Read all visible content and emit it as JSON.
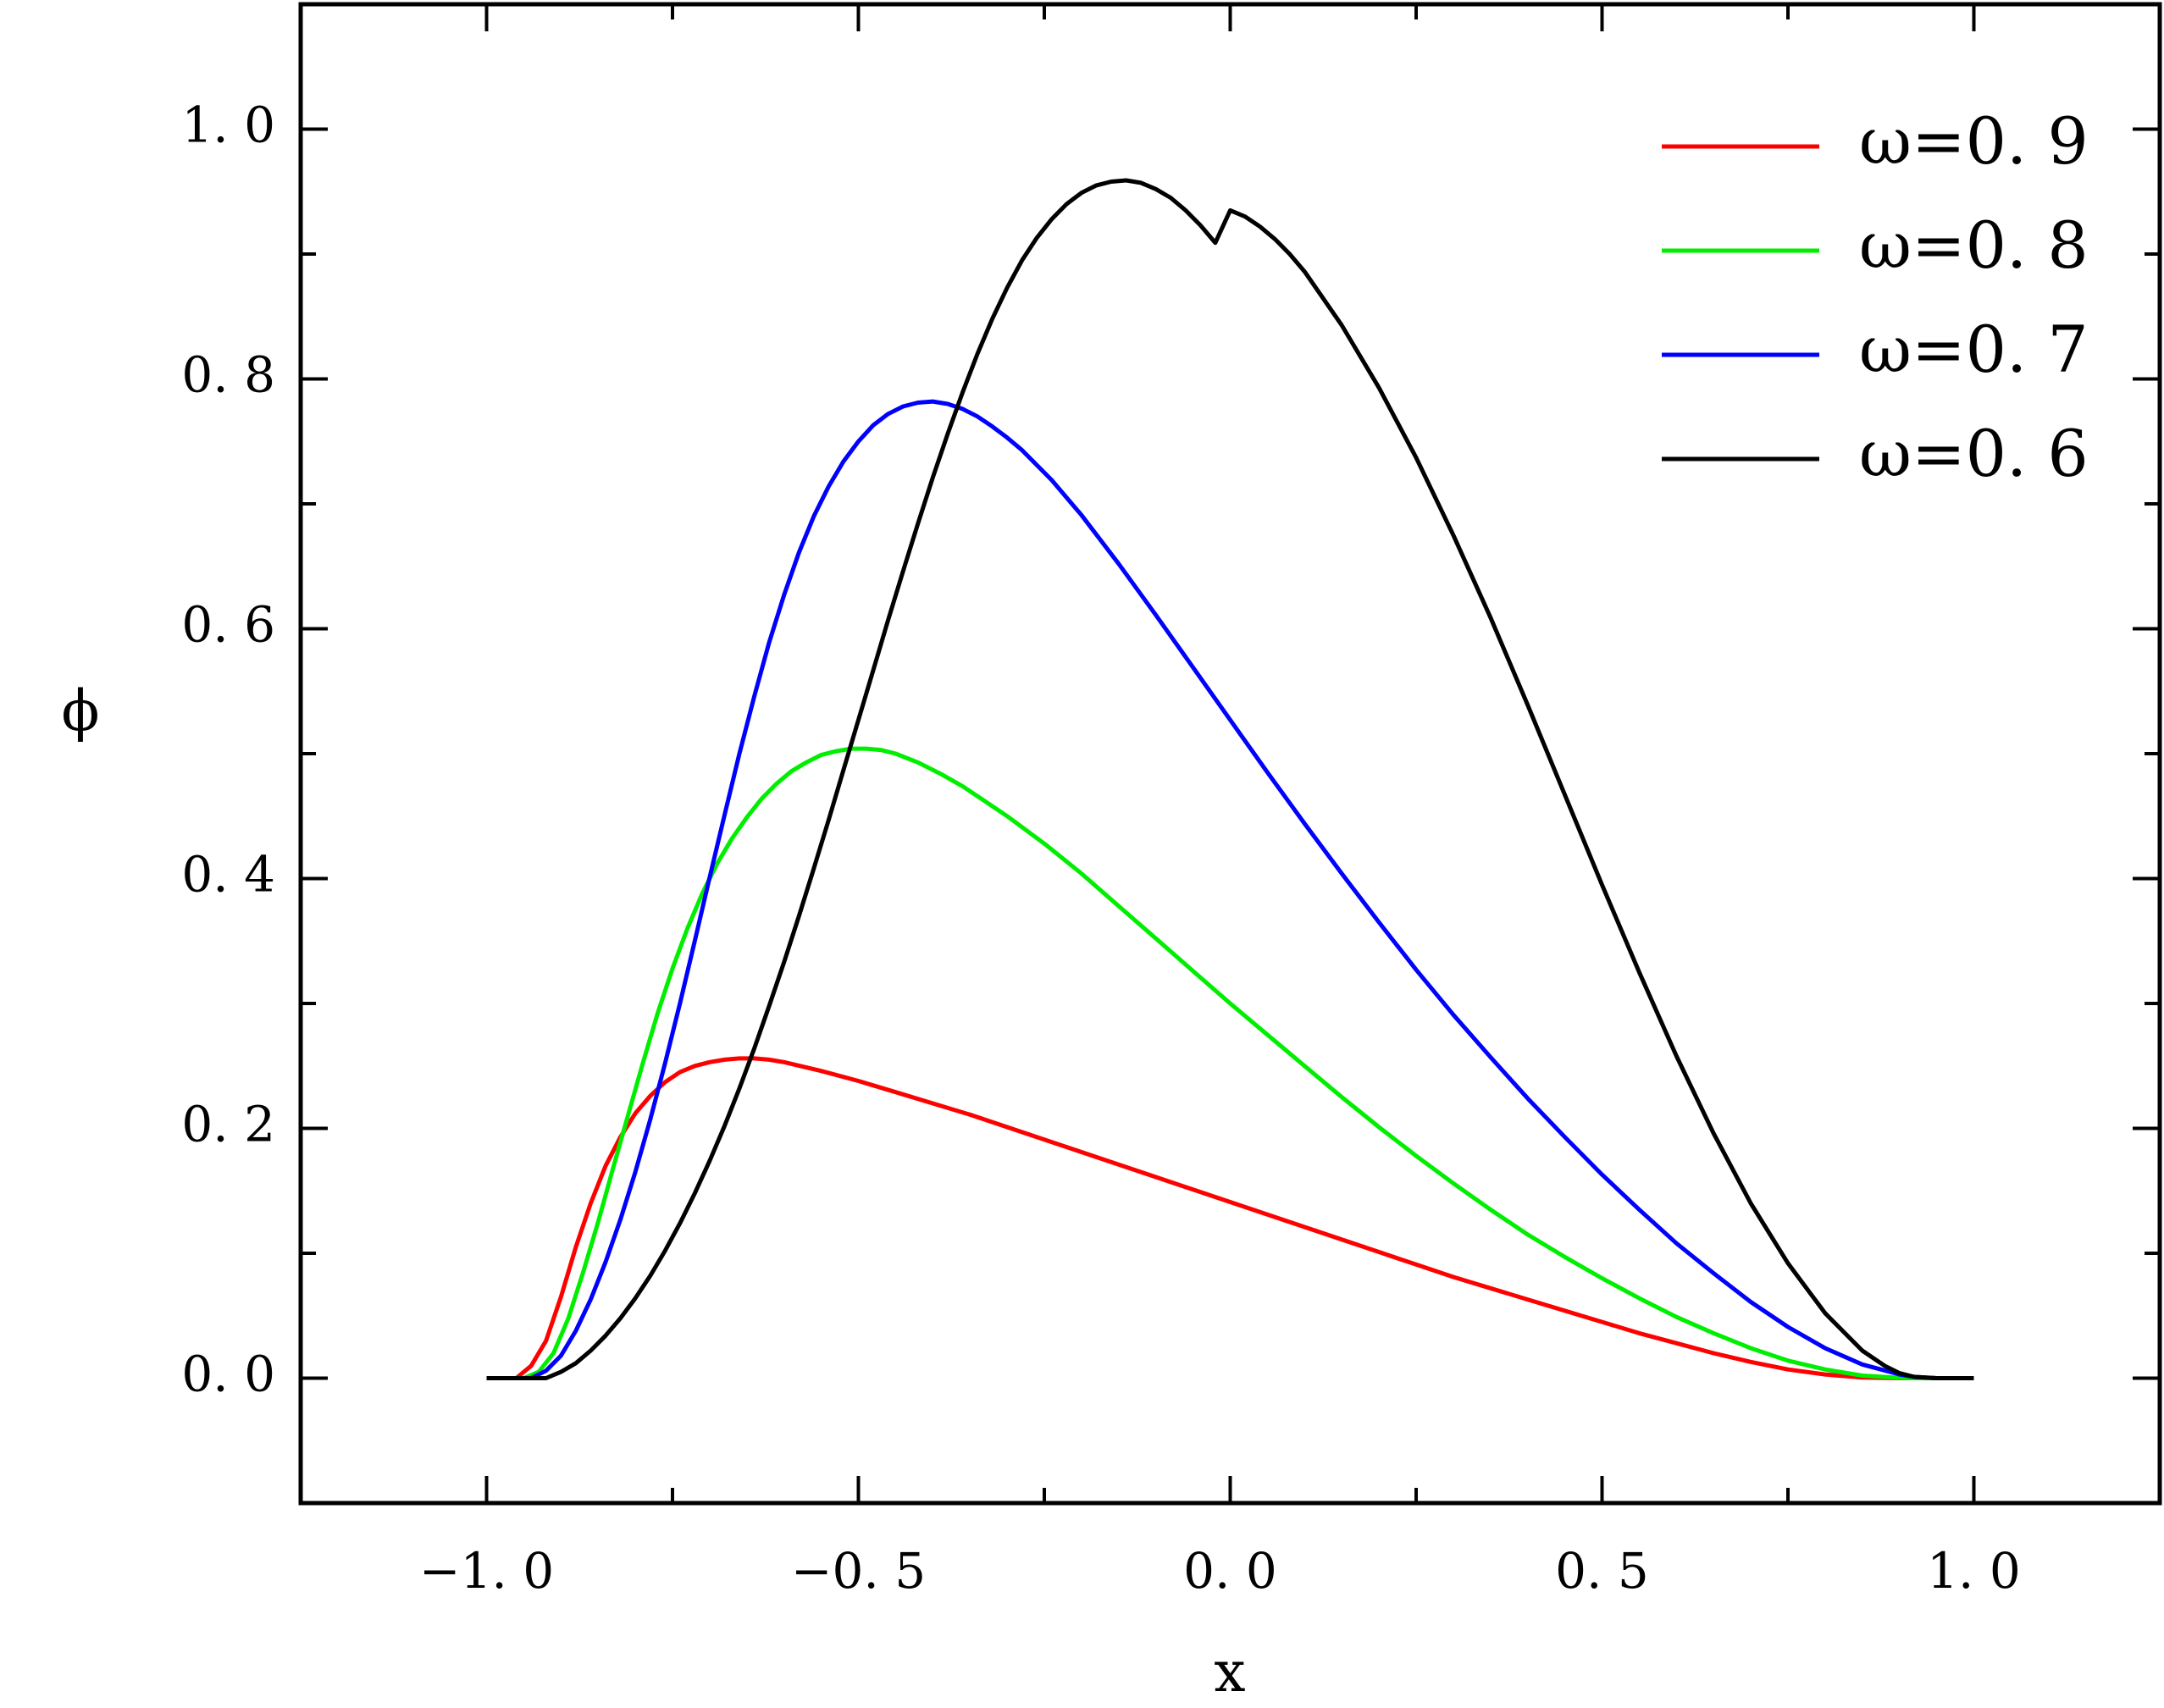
{
  "chart_data": {
    "type": "line",
    "xlabel": "x",
    "ylabel": "ϕ",
    "xlim": [
      -1.25,
      1.25
    ],
    "ylim": [
      -0.1,
      1.1
    ],
    "xticks": [
      -1.0,
      -0.5,
      0.0,
      0.5,
      1.0
    ],
    "xtick_labels": [
      "−1. 0",
      "−0. 5",
      "0. 0",
      "0. 5",
      "1. 0"
    ],
    "yticks": [
      0.0,
      0.2,
      0.4,
      0.6,
      0.8,
      1.0
    ],
    "ytick_labels": [
      "0. 0",
      "0. 2",
      "0. 4",
      "0. 6",
      "0. 8",
      "1. 0"
    ],
    "grid": false,
    "legend_position": "top-right",
    "series": [
      {
        "name": "ω=0. 9",
        "color": "#ff0000",
        "x": [
          -1.0,
          -0.96,
          -0.94,
          -0.92,
          -0.9,
          -0.88,
          -0.86,
          -0.84,
          -0.82,
          -0.8,
          -0.78,
          -0.76,
          -0.74,
          -0.72,
          -0.7,
          -0.68,
          -0.66,
          -0.64,
          -0.62,
          -0.6,
          -0.55,
          -0.5,
          -0.45,
          -0.4,
          -0.35,
          -0.3,
          -0.25,
          -0.2,
          -0.15,
          -0.1,
          -0.05,
          0.0,
          0.05,
          0.1,
          0.15,
          0.2,
          0.25,
          0.3,
          0.35,
          0.4,
          0.45,
          0.5,
          0.55,
          0.6,
          0.65,
          0.7,
          0.75,
          0.8,
          0.85,
          0.9,
          0.92,
          0.95,
          1.0
        ],
        "y": [
          0.0,
          0.0,
          0.01,
          0.03,
          0.065,
          0.105,
          0.14,
          0.17,
          0.193,
          0.212,
          0.226,
          0.237,
          0.245,
          0.25,
          0.253,
          0.255,
          0.256,
          0.256,
          0.255,
          0.253,
          0.246,
          0.238,
          0.229,
          0.22,
          0.211,
          0.201,
          0.191,
          0.181,
          0.171,
          0.161,
          0.151,
          0.141,
          0.131,
          0.121,
          0.111,
          0.101,
          0.091,
          0.081,
          0.072,
          0.063,
          0.054,
          0.045,
          0.036,
          0.028,
          0.02,
          0.013,
          0.007,
          0.003,
          0.0005,
          0.0,
          0.0,
          0.0,
          0.0
        ]
      },
      {
        "name": "ω=0. 8",
        "color": "#00ee00",
        "x": [
          -1.0,
          -0.95,
          -0.93,
          -0.91,
          -0.89,
          -0.87,
          -0.85,
          -0.83,
          -0.81,
          -0.79,
          -0.77,
          -0.75,
          -0.73,
          -0.71,
          -0.69,
          -0.67,
          -0.65,
          -0.63,
          -0.61,
          -0.59,
          -0.57,
          -0.55,
          -0.53,
          -0.51,
          -0.49,
          -0.47,
          -0.45,
          -0.42,
          -0.39,
          -0.36,
          -0.33,
          -0.3,
          -0.25,
          -0.2,
          -0.15,
          -0.1,
          -0.05,
          0.0,
          0.05,
          0.1,
          0.15,
          0.2,
          0.25,
          0.3,
          0.35,
          0.4,
          0.45,
          0.5,
          0.55,
          0.6,
          0.65,
          0.7,
          0.75,
          0.8,
          0.85,
          0.9,
          0.92,
          0.95,
          1.0
        ],
        "y": [
          0.0,
          0.0,
          0.005,
          0.02,
          0.048,
          0.085,
          0.125,
          0.168,
          0.21,
          0.252,
          0.292,
          0.328,
          0.36,
          0.388,
          0.412,
          0.432,
          0.449,
          0.464,
          0.476,
          0.486,
          0.493,
          0.499,
          0.502,
          0.504,
          0.504,
          0.503,
          0.5,
          0.493,
          0.484,
          0.474,
          0.462,
          0.45,
          0.428,
          0.404,
          0.378,
          0.352,
          0.326,
          0.3,
          0.275,
          0.25,
          0.225,
          0.201,
          0.178,
          0.156,
          0.135,
          0.115,
          0.097,
          0.08,
          0.064,
          0.049,
          0.036,
          0.024,
          0.014,
          0.007,
          0.002,
          0.0003,
          0.0,
          0.0,
          0.0
        ]
      },
      {
        "name": "ω=0. 7",
        "color": "#0000ff",
        "x": [
          -1.0,
          -0.94,
          -0.92,
          -0.9,
          -0.88,
          -0.86,
          -0.84,
          -0.82,
          -0.8,
          -0.78,
          -0.76,
          -0.74,
          -0.72,
          -0.7,
          -0.68,
          -0.66,
          -0.64,
          -0.62,
          -0.6,
          -0.58,
          -0.56,
          -0.54,
          -0.52,
          -0.5,
          -0.48,
          -0.46,
          -0.44,
          -0.42,
          -0.4,
          -0.38,
          -0.36,
          -0.34,
          -0.32,
          -0.3,
          -0.28,
          -0.26,
          -0.24,
          -0.22,
          -0.2,
          -0.15,
          -0.1,
          -0.05,
          0.0,
          0.05,
          0.1,
          0.15,
          0.2,
          0.25,
          0.3,
          0.35,
          0.4,
          0.45,
          0.5,
          0.55,
          0.6,
          0.65,
          0.7,
          0.75,
          0.8,
          0.85,
          0.9,
          0.92,
          0.95,
          1.0
        ],
        "y": [
          0.0,
          0.0,
          0.006,
          0.018,
          0.038,
          0.063,
          0.093,
          0.127,
          0.165,
          0.207,
          0.252,
          0.3,
          0.35,
          0.401,
          0.451,
          0.5,
          0.546,
          0.589,
          0.627,
          0.661,
          0.69,
          0.714,
          0.734,
          0.75,
          0.763,
          0.772,
          0.778,
          0.781,
          0.782,
          0.78,
          0.776,
          0.77,
          0.762,
          0.753,
          0.743,
          0.731,
          0.719,
          0.705,
          0.691,
          0.652,
          0.611,
          0.569,
          0.527,
          0.485,
          0.444,
          0.404,
          0.365,
          0.327,
          0.291,
          0.257,
          0.224,
          0.193,
          0.163,
          0.135,
          0.108,
          0.084,
          0.061,
          0.041,
          0.024,
          0.011,
          0.003,
          0.001,
          0.0,
          0.0
        ],
        "note": ""
      },
      {
        "name": "ω=0. 6",
        "color": "#000000",
        "x": [
          -1.0,
          -0.92,
          -0.9,
          -0.88,
          -0.86,
          -0.84,
          -0.82,
          -0.8,
          -0.78,
          -0.76,
          -0.74,
          -0.72,
          -0.7,
          -0.68,
          -0.66,
          -0.64,
          -0.62,
          -0.6,
          -0.58,
          -0.56,
          -0.54,
          -0.52,
          -0.5,
          -0.48,
          -0.46,
          -0.44,
          -0.42,
          -0.4,
          -0.38,
          -0.36,
          -0.34,
          -0.32,
          -0.3,
          -0.28,
          -0.26,
          -0.24,
          -0.22,
          -0.2,
          -0.18,
          -0.16,
          -0.14,
          -0.12,
          -0.1,
          -0.08,
          -0.06,
          -0.04,
          -0.02,
          0.0,
          0.02,
          0.04,
          0.06,
          0.08,
          0.1,
          0.15,
          0.2,
          0.25,
          0.3,
          0.35,
          0.4,
          0.45,
          0.5,
          0.55,
          0.6,
          0.65,
          0.7,
          0.75,
          0.8,
          0.85,
          0.88,
          0.9,
          0.92,
          0.95,
          1.0
        ],
        "y": [
          0.0,
          0.0,
          0.005,
          0.012,
          0.022,
          0.034,
          0.048,
          0.064,
          0.082,
          0.102,
          0.124,
          0.148,
          0.174,
          0.202,
          0.232,
          0.264,
          0.298,
          0.333,
          0.37,
          0.408,
          0.447,
          0.487,
          0.527,
          0.567,
          0.607,
          0.646,
          0.684,
          0.721,
          0.756,
          0.789,
          0.82,
          0.848,
          0.873,
          0.895,
          0.913,
          0.928,
          0.94,
          0.949,
          0.955,
          0.958,
          0.959,
          0.957,
          0.952,
          0.945,
          0.935,
          0.923,
          0.909,
          0.935,
          0.93,
          0.922,
          0.912,
          0.9,
          0.886,
          0.843,
          0.793,
          0.737,
          0.675,
          0.609,
          0.539,
          0.467,
          0.395,
          0.325,
          0.258,
          0.196,
          0.14,
          0.092,
          0.052,
          0.022,
          0.01,
          0.004,
          0.001,
          0.0,
          0.0
        ]
      }
    ]
  }
}
